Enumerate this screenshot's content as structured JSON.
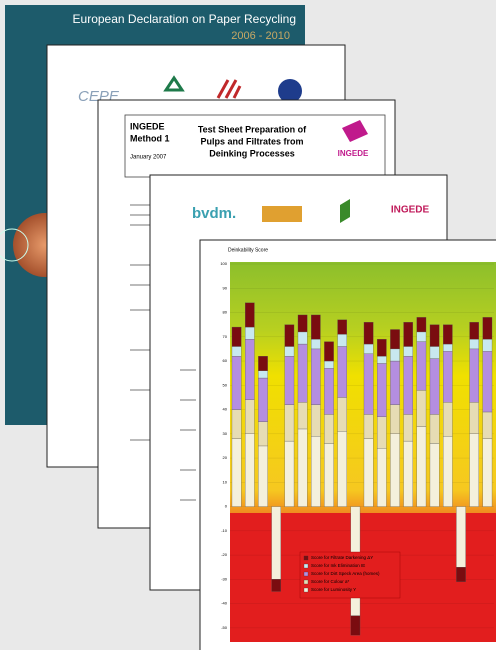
{
  "cover": {
    "title": "European Declaration on Paper Recycling",
    "years": "2006 - 2010"
  },
  "logos_page": {
    "logo": "CEPE"
  },
  "method_sheet": {
    "organization": "INGEDE",
    "method": "Method 1",
    "date": "January 2007",
    "title_lines": [
      "Test Sheet Preparation of",
      "Pulps and Filtrates from",
      "Deinking Processes"
    ],
    "logo": "INGEDE"
  },
  "partners_page": {
    "logo_left": "bvdm.",
    "logo_right": "INGEDE"
  },
  "chart_data": {
    "type": "bar",
    "stacked": true,
    "title": "Deinkability Score",
    "categories": [
      null,
      null,
      null,
      null,
      null,
      null,
      null,
      null,
      null,
      null,
      null,
      null,
      null,
      null,
      null,
      null,
      null,
      null,
      null,
      null
    ],
    "series": [
      {
        "name": "Score for Luminosity Y",
        "color": "#f4f0dc",
        "values": [
          28,
          30,
          25,
          -30,
          27,
          32,
          29,
          26,
          31,
          -45,
          28,
          24,
          30,
          27,
          33,
          26,
          29,
          -25,
          30,
          28
        ]
      },
      {
        "name": "Score for Colour a*",
        "color": "#e6dcb4",
        "values": [
          12,
          14,
          10,
          0,
          15,
          11,
          13,
          12,
          14,
          0,
          10,
          13,
          12,
          11,
          15,
          12,
          14,
          0,
          13,
          11
        ]
      },
      {
        "name": "Score for Dirt Speck Area (homes)",
        "color": "#b48ee0",
        "values": [
          22,
          25,
          18,
          0,
          20,
          24,
          23,
          19,
          21,
          0,
          25,
          22,
          18,
          24,
          20,
          23,
          21,
          0,
          22,
          25
        ]
      },
      {
        "name": "Score for Ink Elimination IE",
        "color": "#c8e8f0",
        "values": [
          4,
          5,
          3,
          0,
          4,
          5,
          4,
          3,
          5,
          0,
          4,
          3,
          5,
          4,
          4,
          5,
          3,
          0,
          4,
          5
        ]
      },
      {
        "name": "Score for Filtrate Darkening ΔY",
        "color": "#7a0c10",
        "values": [
          8,
          10,
          6,
          -5,
          9,
          7,
          10,
          8,
          6,
          -8,
          9,
          7,
          8,
          10,
          6,
          9,
          8,
          -6,
          7,
          9
        ]
      }
    ],
    "ylim": [
      -55,
      100
    ],
    "yticks": [
      100,
      90,
      80,
      70,
      60,
      50,
      40,
      30,
      20,
      10,
      0,
      -10,
      -20,
      -30,
      -40,
      -50
    ]
  }
}
